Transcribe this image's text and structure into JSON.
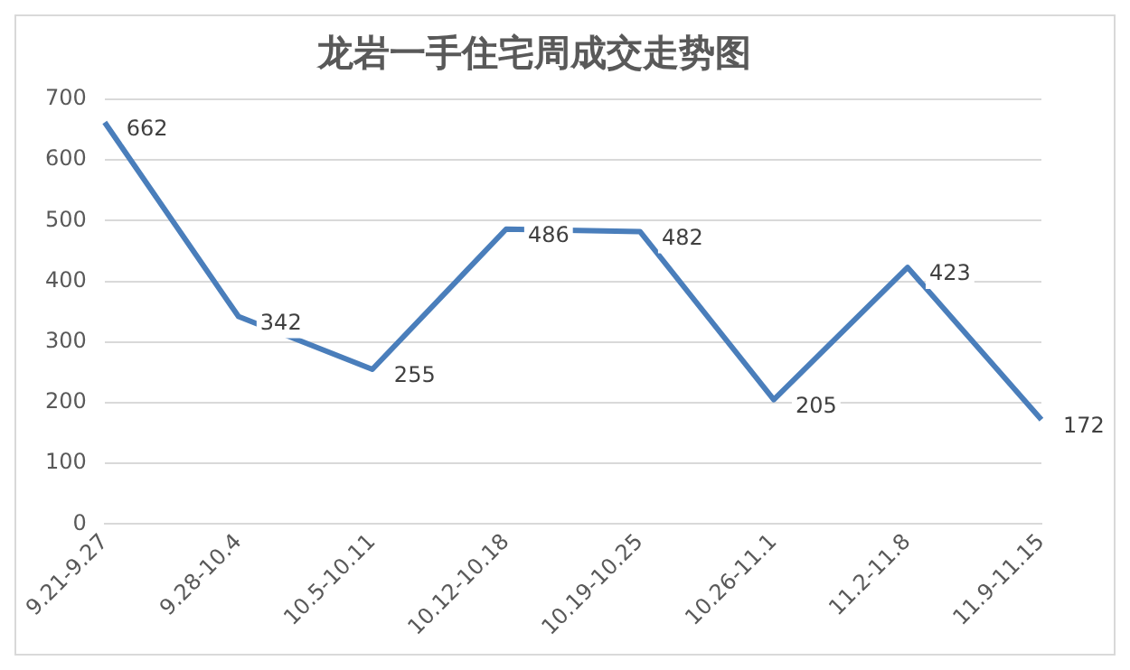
{
  "chart_data": {
    "type": "line",
    "title": "龙岩一手住宅周成交走势图",
    "categories": [
      "9.21-9.27",
      "9.28-10.4",
      "10.5-10.11",
      "10.12-10.18",
      "10.19-10.25",
      "10.26-11.1",
      "11.2-11.8",
      "11.9-11.15"
    ],
    "series": [
      {
        "color": "#4a7ebb",
        "values": [
          662,
          342,
          255,
          486,
          482,
          205,
          423,
          172
        ]
      }
    ],
    "ylim": [
      0,
      700
    ],
    "yticks": [
      0,
      100,
      200,
      300,
      400,
      500,
      600,
      700
    ],
    "grid": "y",
    "data_labels": true,
    "legend": false,
    "marker": "none",
    "line_style": "solid"
  }
}
